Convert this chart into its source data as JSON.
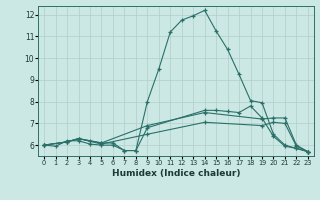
{
  "xlabel": "Humidex (Indice chaleur)",
  "ylabel": "",
  "xlim": [
    -0.5,
    23.5
  ],
  "ylim": [
    5.5,
    12.4
  ],
  "yticks": [
    6,
    7,
    8,
    9,
    10,
    11,
    12
  ],
  "xticks": [
    0,
    1,
    2,
    3,
    4,
    5,
    6,
    7,
    8,
    9,
    10,
    11,
    12,
    13,
    14,
    15,
    16,
    17,
    18,
    19,
    20,
    21,
    22,
    23
  ],
  "bg_color": "#cce8e4",
  "line_color": "#2a7068",
  "grid_color": "#b0ceca",
  "lines": [
    {
      "x": [
        0,
        1,
        2,
        3,
        4,
        5,
        6,
        7,
        8,
        9,
        10,
        11,
        12,
        13,
        14,
        15,
        16,
        17,
        18,
        19,
        20,
        21,
        22,
        23
      ],
      "y": [
        6.0,
        5.95,
        6.2,
        6.2,
        6.05,
        6.0,
        6.0,
        5.75,
        5.75,
        8.0,
        9.5,
        11.2,
        11.75,
        11.95,
        12.2,
        11.25,
        10.4,
        9.25,
        8.05,
        7.95,
        6.5,
        6.0,
        5.85,
        5.7
      ]
    },
    {
      "x": [
        0,
        2,
        3,
        4,
        5,
        6,
        7,
        8,
        9,
        14,
        15,
        16,
        17,
        18,
        19,
        20,
        21,
        22,
        23
      ],
      "y": [
        6.0,
        6.15,
        6.3,
        6.2,
        6.1,
        6.1,
        5.75,
        5.75,
        6.8,
        7.6,
        7.6,
        7.55,
        7.5,
        7.8,
        7.25,
        6.4,
        5.95,
        5.85,
        5.7
      ]
    },
    {
      "x": [
        0,
        2,
        3,
        5,
        9,
        14,
        19,
        20,
        21,
        22,
        23
      ],
      "y": [
        6.0,
        6.15,
        6.3,
        6.1,
        6.9,
        7.5,
        7.2,
        7.25,
        7.25,
        6.0,
        5.7
      ]
    },
    {
      "x": [
        0,
        2,
        3,
        5,
        9,
        14,
        19,
        20,
        21,
        22,
        23
      ],
      "y": [
        6.0,
        6.15,
        6.3,
        6.05,
        6.5,
        7.05,
        6.9,
        7.05,
        7.0,
        5.95,
        5.7
      ]
    }
  ]
}
